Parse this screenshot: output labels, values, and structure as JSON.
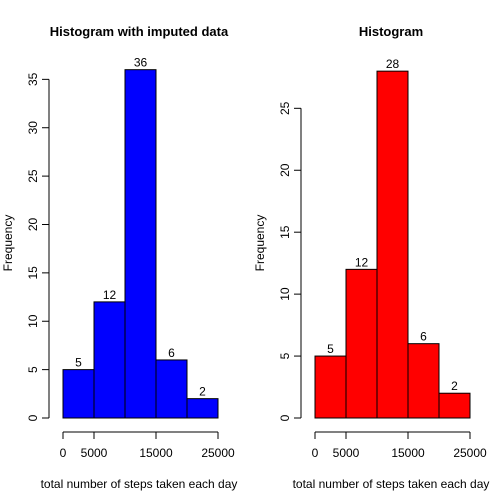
{
  "chart_data": [
    {
      "type": "bar",
      "title": "Histogram with imputed data",
      "xlabel": "total number of steps taken each day",
      "ylabel": "Frequency",
      "bins": [
        [
          0,
          5000
        ],
        [
          5000,
          10000
        ],
        [
          10000,
          15000
        ],
        [
          15000,
          20000
        ],
        [
          20000,
          25000
        ]
      ],
      "values": [
        5,
        12,
        36,
        6,
        2
      ],
      "data_labels": [
        "5",
        "12",
        "36",
        "6",
        "2"
      ],
      "xlim": [
        0,
        25000
      ],
      "ylim": [
        0,
        37
      ],
      "x_ticks": [
        0,
        5000,
        15000,
        25000
      ],
      "x_tick_labels": [
        "0",
        "5000",
        "15000",
        "25000"
      ],
      "y_ticks": [
        0,
        5,
        10,
        15,
        20,
        25,
        30,
        35
      ],
      "y_tick_labels": [
        "0",
        "5",
        "10",
        "15",
        "20",
        "25",
        "30",
        "35"
      ],
      "color": "#0000ff",
      "grid": false
    },
    {
      "type": "bar",
      "title": "Histogram",
      "xlabel": "total number of steps taken each day",
      "ylabel": "Frequency",
      "bins": [
        [
          0,
          5000
        ],
        [
          5000,
          10000
        ],
        [
          10000,
          15000
        ],
        [
          15000,
          20000
        ],
        [
          20000,
          25000
        ]
      ],
      "values": [
        5,
        12,
        28,
        6,
        2
      ],
      "data_labels": [
        "5",
        "12",
        "28",
        "6",
        "2"
      ],
      "xlim": [
        0,
        25000
      ],
      "ylim": [
        0,
        28.9
      ],
      "x_ticks": [
        0,
        5000,
        15000,
        25000
      ],
      "x_tick_labels": [
        "0",
        "5000",
        "15000",
        "25000"
      ],
      "y_ticks": [
        0,
        5,
        10,
        15,
        20,
        25
      ],
      "y_tick_labels": [
        "0",
        "5",
        "10",
        "15",
        "20",
        "25"
      ],
      "color": "#ff0000",
      "grid": false
    }
  ]
}
